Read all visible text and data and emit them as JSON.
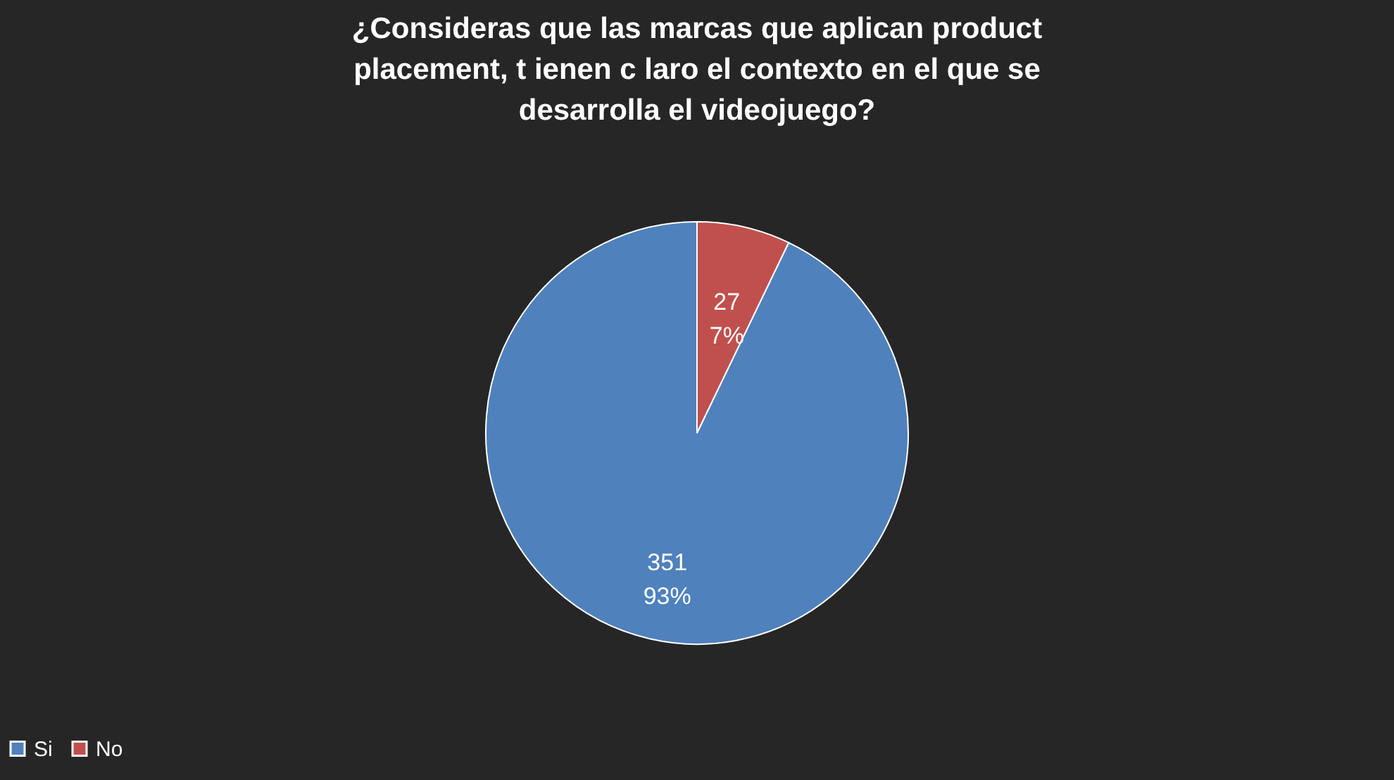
{
  "chart_data": {
    "type": "pie",
    "title": "¿Consideras que las marcas que aplican product placement, t ienen c laro el contexto en el que se desarrolla el videojuego?",
    "categories": [
      "Si",
      "No"
    ],
    "values": [
      351,
      27
    ],
    "colors": [
      "#4f81bd",
      "#c0504d"
    ],
    "value_labels": [
      "351\n93%",
      "27\n7%"
    ],
    "legend": "bottom"
  }
}
